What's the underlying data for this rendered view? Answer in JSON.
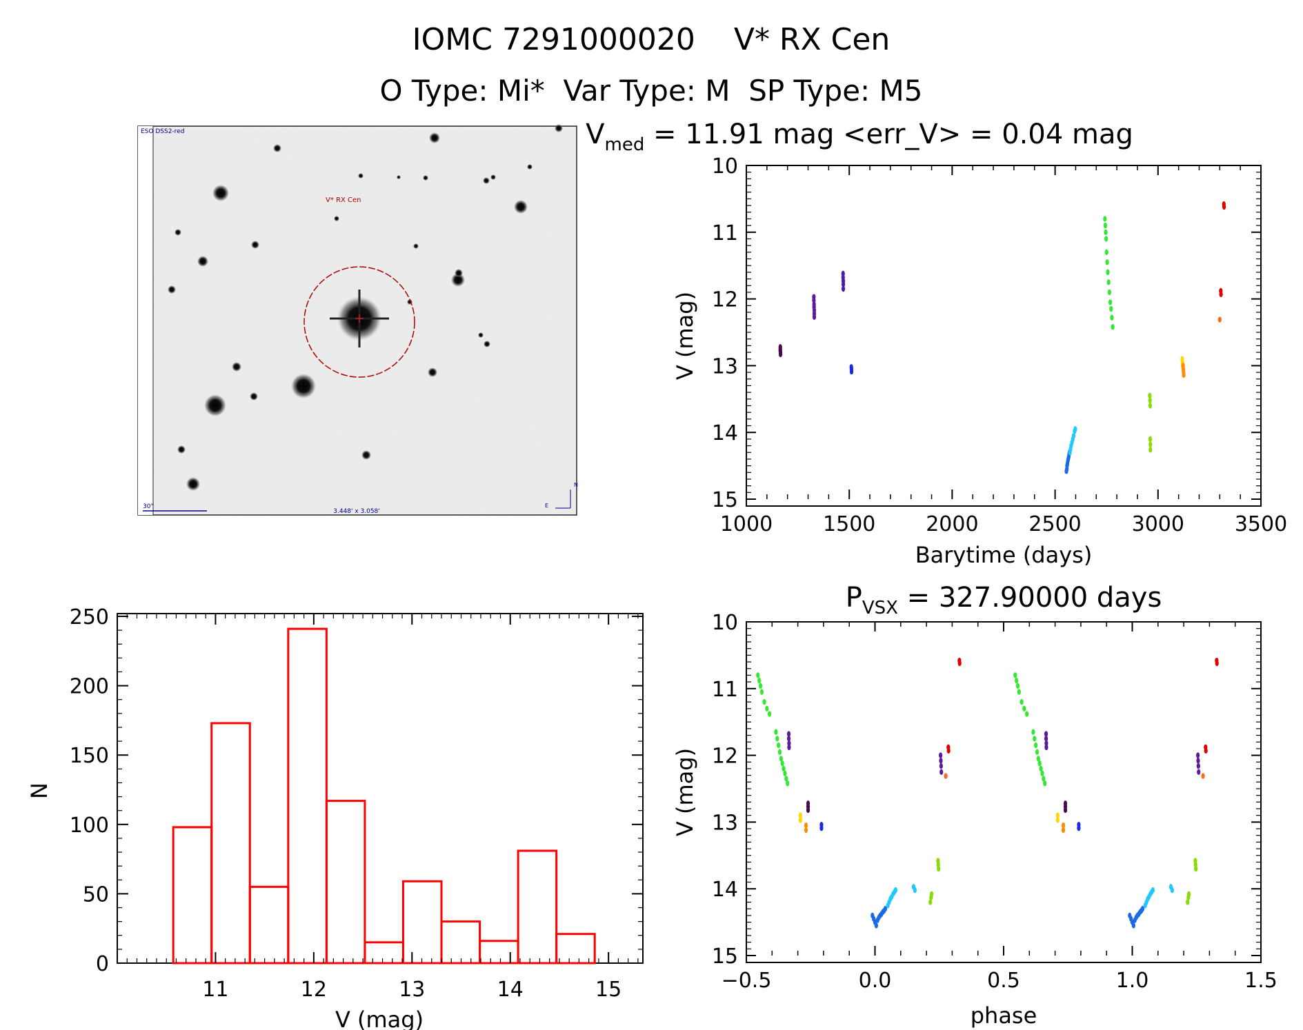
{
  "header": {
    "line1": "IOMC 7291000020    V* RX Cen",
    "line2": "O Type: Mi*  Var Type: M  SP Type: M5"
  },
  "thumbnail": {
    "survey_label": "ESO DSS2-red",
    "target_label": "V* RX Cen",
    "scale_label": "30\"",
    "fov_label": "3.448' x 3.058'",
    "north_label": "N",
    "east_label": "E"
  },
  "colors": {
    "histogram_bar": "#ff0000",
    "target_circle": "#aa0000",
    "label_blue": "#00008b"
  },
  "chart_data": [
    {
      "id": "lightcurve",
      "type": "scatter",
      "title_main": "V",
      "title_sub": "med",
      "title_rest": " = 11.91 mag <err_V> = 0.04 mag",
      "xlabel": "Barytime (days)",
      "ylabel": "V (mag)",
      "xlim": [
        1000,
        3500
      ],
      "ylim": [
        10,
        15
      ],
      "y_inverted": true,
      "xticks": [
        "1000",
        "1500",
        "2000",
        "2500",
        "3000",
        "3500"
      ],
      "yticks": [
        "10",
        "11",
        "12",
        "13",
        "14",
        "15"
      ],
      "groups": [
        {
          "color": "#4b0a4b",
          "x": [
            1165,
            1165,
            1165,
            1166,
            1166
          ],
          "y": [
            12.72,
            12.75,
            12.78,
            12.8,
            12.83
          ]
        },
        {
          "color": "#5a1a9a",
          "x": [
            1328,
            1328,
            1329,
            1329,
            1330,
            1330,
            1330
          ],
          "y": [
            11.97,
            12.02,
            12.08,
            12.12,
            12.17,
            12.22,
            12.27
          ]
        },
        {
          "color": "#4a1ab0",
          "x": [
            1470,
            1470,
            1471,
            1471,
            1471
          ],
          "y": [
            11.62,
            11.68,
            11.73,
            11.78,
            11.85
          ]
        },
        {
          "color": "#1a2ae0",
          "x": [
            1510,
            1511,
            1511
          ],
          "y": [
            13.02,
            13.05,
            13.09
          ]
        },
        {
          "color": "#1a6ae8",
          "x": [
            2555,
            2557,
            2558,
            2560,
            2562,
            2564,
            2566,
            2568,
            2570
          ],
          "y": [
            14.58,
            14.55,
            14.5,
            14.47,
            14.43,
            14.4,
            14.37,
            14.33,
            14.3
          ]
        },
        {
          "color": "#20c8ff",
          "x": [
            2572,
            2575,
            2578,
            2582,
            2586,
            2590,
            2595,
            2598
          ],
          "y": [
            14.3,
            14.25,
            14.2,
            14.15,
            14.1,
            14.05,
            13.98,
            13.95
          ]
        },
        {
          "color": "#33e833",
          "x": [
            2742,
            2744,
            2746,
            2748,
            2750,
            2753,
            2756,
            2760,
            2764,
            2768,
            2772,
            2776,
            2780
          ],
          "y": [
            10.8,
            10.9,
            11.0,
            11.1,
            11.3,
            11.45,
            11.6,
            11.75,
            11.9,
            12.05,
            12.15,
            12.28,
            12.42
          ]
        },
        {
          "color": "#8adc00",
          "x": [
            2960,
            2961,
            2962,
            2962,
            2963,
            2963
          ],
          "y": [
            13.45,
            13.52,
            13.6,
            14.1,
            14.18,
            14.26
          ]
        },
        {
          "color": "#ffd700",
          "x": [
            3118,
            3119,
            3120
          ],
          "y": [
            12.9,
            12.95,
            13.0
          ]
        },
        {
          "color": "#ff8c00",
          "x": [
            3122,
            3123,
            3124,
            3125
          ],
          "y": [
            13.0,
            13.05,
            13.1,
            13.14
          ]
        },
        {
          "color": "#ff6a1a",
          "x": [
            3300
          ],
          "y": [
            12.31
          ]
        },
        {
          "color": "#e00000",
          "x": [
            3305,
            3306,
            3320,
            3321
          ],
          "y": [
            11.88,
            11.93,
            10.58,
            10.62
          ]
        }
      ]
    },
    {
      "id": "histogram",
      "type": "bar",
      "xlabel": "V (mag)",
      "ylabel": "N",
      "xlim": [
        10.0,
        15.35
      ],
      "ylim": [
        0,
        252
      ],
      "xticks": [
        "11",
        "12",
        "13",
        "14",
        "15"
      ],
      "yticks": [
        "0",
        "50",
        "100",
        "150",
        "200",
        "250"
      ],
      "bin_edges": [
        10.57,
        10.96,
        11.35,
        11.74,
        12.13,
        12.52,
        12.91,
        13.3,
        13.69,
        14.08,
        14.47,
        14.86
      ],
      "values": [
        98,
        173,
        55,
        241,
        117,
        15,
        59,
        30,
        16,
        81,
        21
      ]
    },
    {
      "id": "phased",
      "type": "scatter",
      "title_main": "P",
      "title_sub": "VSX",
      "title_rest": " = 327.90000 days",
      "xlabel": "phase",
      "ylabel": "V (mag)",
      "xlim": [
        -0.5,
        1.5
      ],
      "ylim": [
        10,
        15
      ],
      "y_inverted": true,
      "xticks": [
        "−0.5",
        "0.0",
        "0.5",
        "1.0",
        "1.5"
      ],
      "yticks": [
        "10",
        "11",
        "12",
        "13",
        "14",
        "15"
      ],
      "groups": [
        {
          "color": "#33e833",
          "x": [
            -0.455,
            -0.45,
            -0.445,
            -0.44,
            -0.43,
            -0.42,
            -0.41,
            -0.385,
            -0.38,
            -0.375,
            -0.37,
            -0.365,
            -0.36,
            -0.355,
            -0.35,
            -0.345,
            -0.34
          ],
          "y": [
            10.8,
            10.88,
            10.96,
            11.05,
            11.2,
            11.3,
            11.38,
            11.65,
            11.75,
            11.85,
            11.95,
            12.05,
            12.12,
            12.2,
            12.27,
            12.35,
            12.42
          ]
        },
        {
          "color": "#5a1a9a",
          "x": [
            -0.335,
            -0.335,
            -0.334,
            -0.334
          ],
          "y": [
            11.68,
            11.75,
            11.82,
            11.88
          ]
        },
        {
          "color": "#ffd700",
          "x": [
            -0.29,
            -0.29
          ],
          "y": [
            12.9,
            12.97
          ]
        },
        {
          "color": "#ff8c00",
          "x": [
            -0.268,
            -0.268
          ],
          "y": [
            13.05,
            13.12
          ]
        },
        {
          "color": "#4b0a4b",
          "x": [
            -0.26,
            -0.26,
            -0.26
          ],
          "y": [
            12.72,
            12.77,
            12.82
          ]
        },
        {
          "color": "#1a2ae0",
          "x": [
            -0.208,
            -0.208
          ],
          "y": [
            13.04,
            13.09
          ]
        },
        {
          "color": "#1a6ae8",
          "x": [
            -0.01,
            -0.005,
            0.0,
            0.005,
            0.01,
            0.015,
            0.02,
            0.025,
            0.03,
            0.035,
            0.04
          ],
          "y": [
            14.4,
            14.45,
            14.5,
            14.55,
            14.47,
            14.43,
            14.4,
            14.38,
            14.35,
            14.33,
            14.3
          ]
        },
        {
          "color": "#20c8ff",
          "x": [
            0.05,
            0.055,
            0.06,
            0.065,
            0.07,
            0.075,
            0.08,
            0.15,
            0.155
          ],
          "y": [
            14.25,
            14.2,
            14.15,
            14.12,
            14.08,
            14.05,
            14.02,
            13.97,
            14.02
          ]
        },
        {
          "color": "#8adc00",
          "x": [
            0.215,
            0.218,
            0.22,
            0.245,
            0.246,
            0.247
          ],
          "y": [
            14.2,
            14.13,
            14.08,
            13.58,
            13.64,
            13.7
          ]
        },
        {
          "color": "#5a1a9a",
          "x": [
            0.255,
            0.256,
            0.257,
            0.258
          ],
          "y": [
            12.0,
            12.08,
            12.16,
            12.25
          ]
        },
        {
          "color": "#ff6a1a",
          "x": [
            0.275
          ],
          "y": [
            12.31
          ]
        },
        {
          "color": "#e00000",
          "x": [
            0.285,
            0.286,
            0.328,
            0.329
          ],
          "y": [
            11.88,
            11.93,
            10.58,
            10.62
          ]
        },
        {
          "color": "#33e833",
          "x": [
            0.545,
            0.55,
            0.555,
            0.56,
            0.57,
            0.58,
            0.59,
            0.615,
            0.62,
            0.625,
            0.63,
            0.635,
            0.64,
            0.645,
            0.65,
            0.655,
            0.66
          ],
          "y": [
            10.8,
            10.88,
            10.96,
            11.05,
            11.2,
            11.3,
            11.38,
            11.65,
            11.75,
            11.85,
            11.95,
            12.05,
            12.12,
            12.2,
            12.27,
            12.35,
            12.42
          ]
        },
        {
          "color": "#5a1a9a",
          "x": [
            0.665,
            0.665,
            0.666,
            0.666
          ],
          "y": [
            11.68,
            11.75,
            11.82,
            11.88
          ]
        },
        {
          "color": "#ffd700",
          "x": [
            0.71,
            0.71
          ],
          "y": [
            12.9,
            12.97
          ]
        },
        {
          "color": "#ff8c00",
          "x": [
            0.732,
            0.732
          ],
          "y": [
            13.05,
            13.12
          ]
        },
        {
          "color": "#4b0a4b",
          "x": [
            0.74,
            0.74,
            0.74
          ],
          "y": [
            12.72,
            12.77,
            12.82
          ]
        },
        {
          "color": "#1a2ae0",
          "x": [
            0.792,
            0.792
          ],
          "y": [
            13.04,
            13.09
          ]
        },
        {
          "color": "#1a6ae8",
          "x": [
            0.99,
            0.995,
            1.0,
            1.005,
            1.01,
            1.015,
            1.02,
            1.025,
            1.03,
            1.035,
            1.04
          ],
          "y": [
            14.4,
            14.45,
            14.5,
            14.55,
            14.47,
            14.43,
            14.4,
            14.38,
            14.35,
            14.33,
            14.3
          ]
        },
        {
          "color": "#20c8ff",
          "x": [
            1.05,
            1.055,
            1.06,
            1.065,
            1.07,
            1.075,
            1.08,
            1.15,
            1.155
          ],
          "y": [
            14.25,
            14.2,
            14.15,
            14.12,
            14.08,
            14.05,
            14.02,
            13.97,
            14.02
          ]
        },
        {
          "color": "#8adc00",
          "x": [
            1.215,
            1.218,
            1.22,
            1.245,
            1.246,
            1.247
          ],
          "y": [
            14.2,
            14.13,
            14.08,
            13.58,
            13.64,
            13.7
          ]
        },
        {
          "color": "#5a1a9a",
          "x": [
            1.255,
            1.256,
            1.257,
            1.258
          ],
          "y": [
            12.0,
            12.08,
            12.16,
            12.25
          ]
        },
        {
          "color": "#ff6a1a",
          "x": [
            1.275
          ],
          "y": [
            12.31
          ]
        },
        {
          "color": "#e00000",
          "x": [
            1.285,
            1.286,
            1.328,
            1.329
          ],
          "y": [
            11.88,
            11.93,
            10.58,
            10.62
          ]
        }
      ]
    }
  ]
}
